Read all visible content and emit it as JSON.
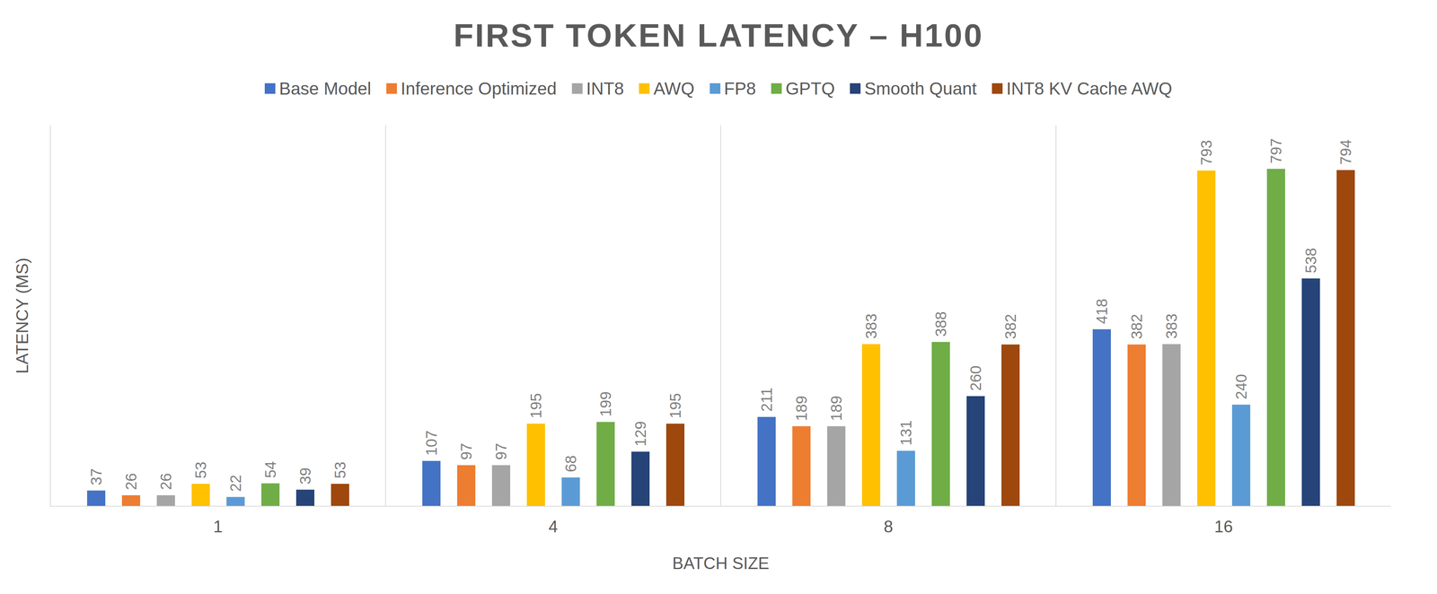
{
  "chart_data": {
    "type": "bar",
    "title": "FIRST TOKEN LATENCY – H100",
    "x_label": "BATCH SIZE",
    "y_label": "LATENCY (MS)",
    "categories": [
      "1",
      "4",
      "8",
      "16"
    ],
    "series": [
      {
        "name": "Base Model",
        "color": "#4472c4",
        "values": [
          37,
          107,
          211,
          418
        ]
      },
      {
        "name": "Inference Optimized",
        "color": "#ed7d31",
        "values": [
          26,
          97,
          189,
          382
        ]
      },
      {
        "name": "INT8",
        "color": "#a5a5a5",
        "values": [
          26,
          97,
          189,
          383
        ]
      },
      {
        "name": "AWQ",
        "color": "#ffc000",
        "values": [
          53,
          195,
          383,
          793
        ]
      },
      {
        "name": "FP8",
        "color": "#5b9bd5",
        "values": [
          22,
          68,
          131,
          240
        ]
      },
      {
        "name": "GPTQ",
        "color": "#70ad47",
        "values": [
          54,
          199,
          388,
          797
        ]
      },
      {
        "name": "Smooth Quant",
        "color": "#264478",
        "values": [
          39,
          129,
          260,
          538
        ]
      },
      {
        "name": "INT8 KV Cache AWQ",
        "color": "#9e480e",
        "values": [
          53,
          195,
          382,
          794
        ]
      }
    ],
    "ylim": [
      0,
      900
    ],
    "grid": true,
    "data_labels": true,
    "tick_labels": "x",
    "legend": "top"
  }
}
